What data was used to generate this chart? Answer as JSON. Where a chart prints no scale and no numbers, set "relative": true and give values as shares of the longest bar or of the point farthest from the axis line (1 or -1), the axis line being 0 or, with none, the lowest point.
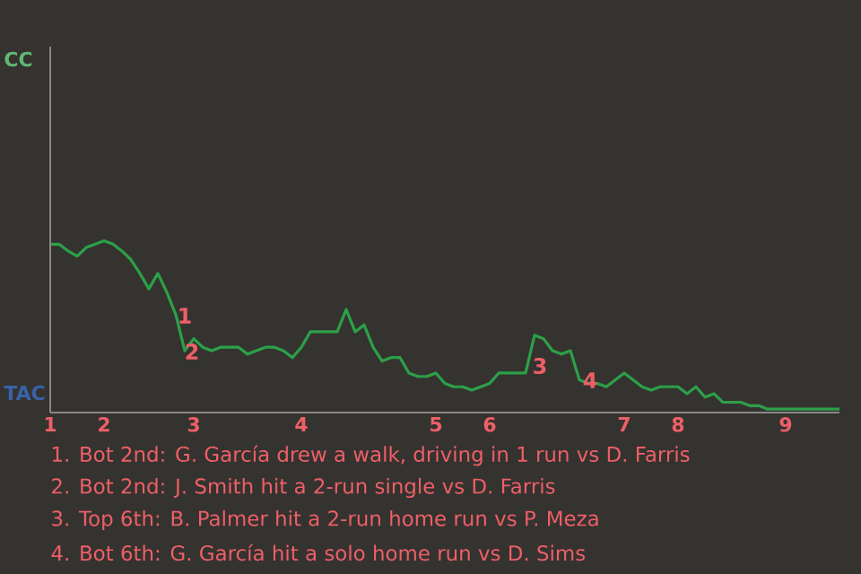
{
  "chart_data": {
    "type": "line",
    "relative": true,
    "categories": [
      "1",
      null,
      null,
      null,
      null,
      null,
      "2",
      null,
      null,
      null,
      null,
      null,
      null,
      null,
      null,
      null,
      "3",
      null,
      null,
      null,
      null,
      null,
      null,
      null,
      null,
      null,
      null,
      null,
      "4",
      null,
      null,
      null,
      null,
      null,
      null,
      null,
      null,
      null,
      null,
      null,
      null,
      null,
      null,
      "5",
      null,
      null,
      null,
      null,
      null,
      "6",
      null,
      null,
      null,
      null,
      null,
      null,
      null,
      null,
      null,
      null,
      null,
      null,
      null,
      null,
      "7",
      null,
      null,
      null,
      null,
      null,
      "8",
      null,
      null,
      null,
      null,
      null,
      null,
      null,
      null,
      null,
      null,
      null,
      "9",
      null,
      null,
      null,
      null,
      null,
      null
    ],
    "marker": "none",
    "line_style": "solid",
    "series": [
      {
        "color": "#2ca048",
        "values": [
          0.98,
          0.98,
          0.94,
          0.91,
          0.96,
          0.98,
          1,
          0.98,
          0.94,
          0.89,
          0.81,
          0.72,
          0.81,
          0.7,
          0.57,
          0.36,
          0.43,
          0.38,
          0.36,
          0.38,
          0.38,
          0.38,
          0.34,
          0.36,
          0.38,
          0.38,
          0.36,
          0.32,
          0.38,
          0.47,
          0.47,
          0.47,
          0.47,
          0.6,
          0.47,
          0.51,
          0.38,
          0.3,
          0.32,
          0.32,
          0.23,
          0.21,
          0.21,
          0.23,
          0.17,
          0.15,
          0.15,
          0.13,
          0.15,
          0.17,
          0.23,
          0.23,
          0.23,
          0.23,
          0.45,
          0.43,
          0.36,
          0.34,
          0.36,
          0.19,
          0.17,
          0.17,
          0.15,
          0.19,
          0.23,
          0.19,
          0.15,
          0.13,
          0.15,
          0.15,
          0.15,
          0.11,
          0.15,
          0.09,
          0.11,
          0.06,
          0.06,
          0.06,
          0.04,
          0.04,
          0.02,
          0.02,
          0.02,
          0.02,
          0.02,
          0.02,
          0.02,
          0.02,
          0.02
        ]
      }
    ],
    "annotations": [
      "CC",
      "TAC",
      "1",
      "2",
      "3",
      "4",
      "1. Bot 2nd: G. García drew a walk, driving in 1 run vs D. Farris",
      "2. Bot 2nd: J. Smith hit a 2-run single vs D. Farris",
      "3. Top 6th: B. Palmer hit a 2-run home run vs P. Meza",
      "4. Bot 6th: G. García hit a solo home run vs D. Sims"
    ]
  }
}
